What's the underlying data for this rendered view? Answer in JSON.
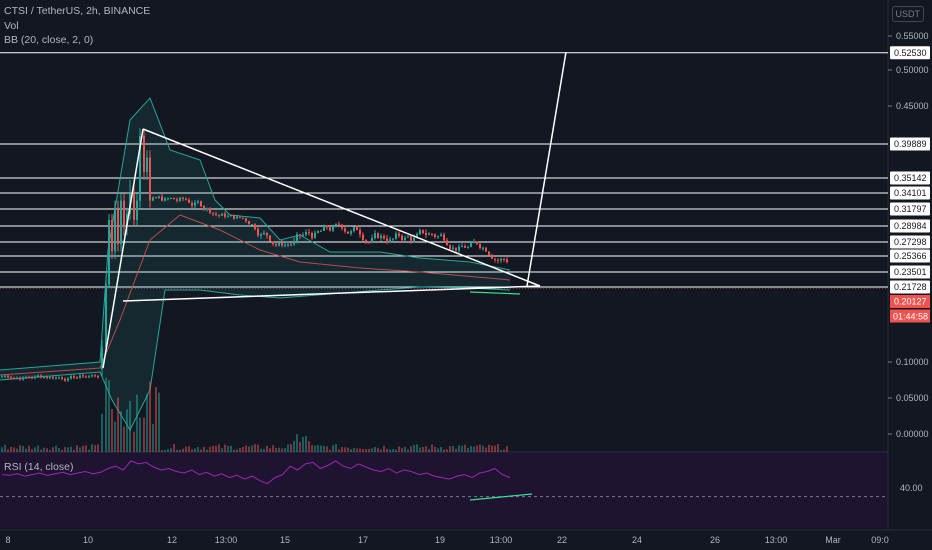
{
  "legend": {
    "symbol": "CTSI / TetherUS, 2h, BINANCE",
    "vol": "Vol",
    "bb": "BB (20, close, 2, 0)",
    "rsi": "RSI (14, close)"
  },
  "currency_button": "USDT",
  "colors": {
    "background": "#131722",
    "up": "#26a69a",
    "down": "#ef5350",
    "line": "#ffffff",
    "bb_band": "#26a69a",
    "bb_basis": "#b84b4b",
    "rsi_line": "#9c27b0",
    "rsi_bg": "#1f1332",
    "divergence": "#3ce08c",
    "axis_text": "#b2b5be"
  },
  "chart_data": {
    "type": "candlestick",
    "y_axis_ticks": [
      "0.55000",
      "0.50000",
      "0.45000",
      "0.10000",
      "0.05000",
      "0.00000"
    ],
    "x_axis_ticks": [
      "8",
      "10",
      "12",
      "13:00",
      "15",
      "17",
      "19",
      "13:00",
      "22",
      "24",
      "26",
      "13:00",
      "Mar",
      "09:0"
    ],
    "level_lines": [
      "0.52530",
      "0.39889",
      "0.35142",
      "0.34101",
      "0.31797",
      "0.28984",
      "0.27298",
      "0.25366",
      "0.23501",
      "0.21728"
    ],
    "current_price": "0.20127",
    "countdown": "01:44:58",
    "rsi_level": "40.00",
    "rsi_values": [
      44,
      43,
      45,
      42,
      44,
      46,
      43,
      45,
      47,
      44,
      46,
      48,
      45,
      47,
      52,
      55,
      50,
      62,
      58,
      60,
      54,
      50,
      52,
      48,
      46,
      50,
      44,
      47,
      42,
      45,
      40,
      43,
      38,
      42,
      36,
      32,
      40,
      44,
      55,
      50,
      58,
      60,
      52,
      56,
      62,
      55,
      52,
      58,
      54,
      50,
      48,
      52,
      46,
      50,
      48,
      44,
      46,
      42,
      40,
      38,
      42,
      44,
      40,
      46,
      48,
      52,
      44,
      40
    ]
  }
}
